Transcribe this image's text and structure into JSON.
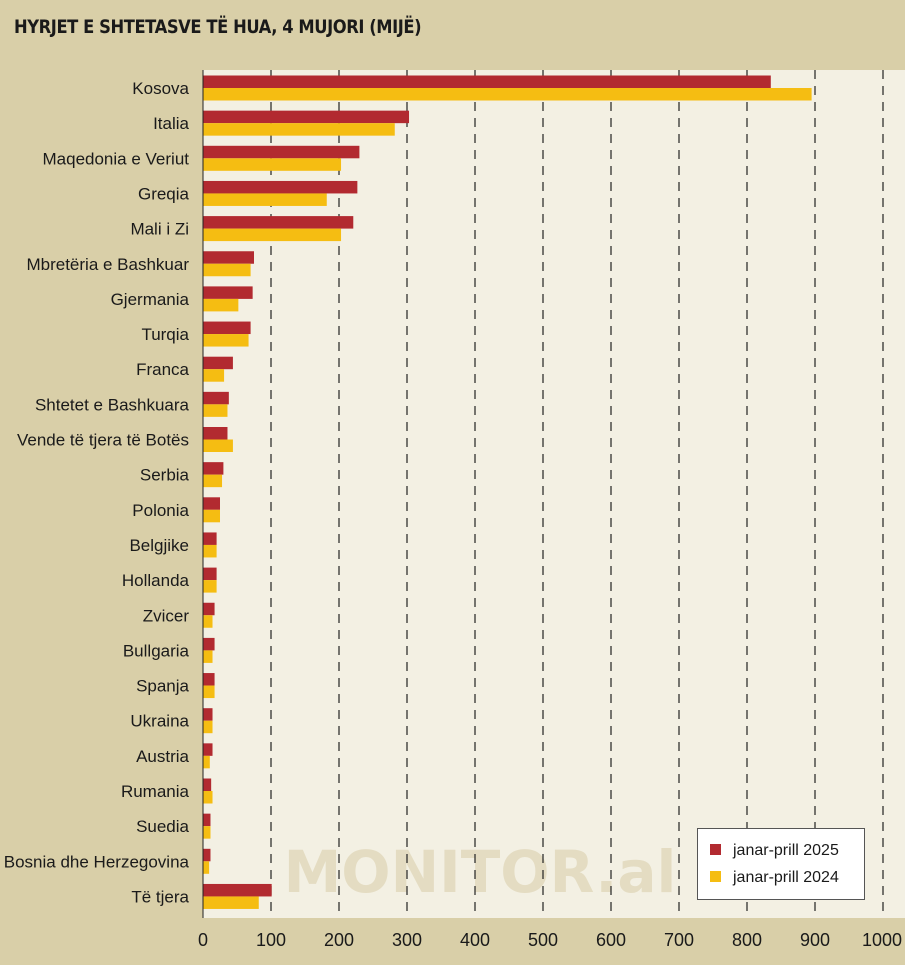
{
  "title": "HYRJET E SHTETASVE TË HUA, 4 MUJORI (MIJË)",
  "watermark": "MONITOR.al",
  "colors": {
    "series_2025": "#b22a30",
    "series_2024": "#f5bd12",
    "plot_bg": "#f3f0e3",
    "page_bg": "#d9cfa8"
  },
  "chart_data": {
    "type": "bar",
    "orientation": "horizontal",
    "categories": [
      "Kosova",
      "Italia",
      "Maqedonia e Veriut",
      "Greqia",
      "Mali i Zi",
      "Mbretëria e Bashkuar",
      "Gjermania",
      "Turqia",
      "Franca",
      "Shtetet e Bashkuara",
      "Vende të tjera të Botës",
      "Serbia",
      "Polonia",
      "Belgjike",
      "Hollanda",
      "Zvicer",
      "Bullgaria",
      "Spanja",
      "Ukraina",
      "Austria",
      "Rumania",
      "Suedia",
      "Bosnia dhe Herzegovina",
      "Të tjera"
    ],
    "series": [
      {
        "name": "janar-prill 2025",
        "values": [
          835,
          303,
          230,
          227,
          221,
          75,
          73,
          70,
          44,
          38,
          36,
          30,
          25,
          20,
          20,
          17,
          17,
          17,
          14,
          14,
          12,
          11,
          11,
          101
        ]
      },
      {
        "name": "janar-prill 2024",
        "values": [
          895,
          282,
          203,
          182,
          203,
          70,
          52,
          67,
          31,
          36,
          44,
          28,
          25,
          20,
          20,
          14,
          14,
          17,
          14,
          10,
          14,
          11,
          9,
          82
        ]
      }
    ],
    "xlim": [
      0,
      1000
    ],
    "xticks": [
      "0",
      "100",
      "200",
      "300",
      "400",
      "500",
      "600",
      "700",
      "800",
      "900",
      "1000"
    ],
    "grid": "vertical dashed",
    "legend_position": "bottom-right"
  }
}
